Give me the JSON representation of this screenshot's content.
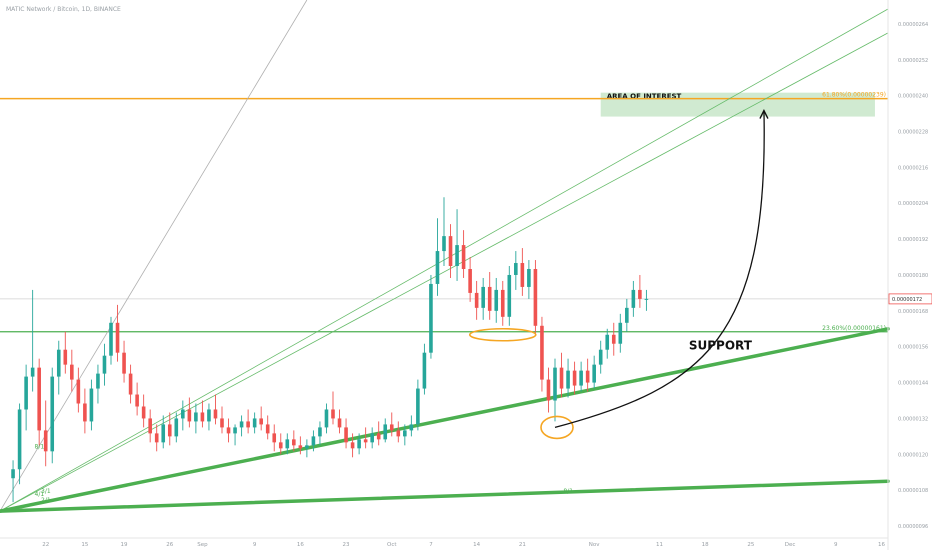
{
  "header": {
    "title": "MATIC Network / Bitcoin, 1D, BINANCE"
  },
  "colors": {
    "up": "#26a69a",
    "down": "#ef5350",
    "fib_line": "#f5a623",
    "support_line": "#4caf50",
    "zone_fill": "#c8e6c9",
    "fan_line": "#66bb6a",
    "highlight": "#f5a623",
    "arrow": "#111111",
    "current_price_bg": "#ef5350"
  },
  "annotations": {
    "area_of_interest": "AREA OF INTEREST",
    "support": "SUPPORT",
    "fib_upper_label": "61.80%(0.00000239)",
    "fib_lower_label": "23.60%(0.00000161)",
    "current_price": "0.00000172",
    "fan_labels": [
      "8/1",
      "4/1",
      "3/1",
      "2/1",
      "8/1"
    ]
  },
  "chart_data": {
    "type": "candlestick",
    "title": "MATIC Network / Bitcoin, 1D, BINANCE",
    "xlabel": "",
    "ylabel": "",
    "grid": false,
    "y_axis_side": "right",
    "ylim": [
      9.2e-07,
      2.72e-06
    ],
    "y_ticks": [
      9.6e-07,
      1.08e-06,
      1.2e-06,
      1.32e-06,
      1.44e-06,
      1.56e-06,
      1.68e-06,
      1.8e-06,
      1.92e-06,
      2.04e-06,
      2.16e-06,
      2.28e-06,
      2.4e-06,
      2.52e-06,
      2.64e-06
    ],
    "x_ticks": [
      {
        "label": "22",
        "day": 5
      },
      {
        "label": "15",
        "day": 11
      },
      {
        "label": "19",
        "day": 17
      },
      {
        "label": "26",
        "day": 24
      },
      {
        "label": "Sep",
        "day": 29
      },
      {
        "label": "9",
        "day": 37
      },
      {
        "label": "16",
        "day": 44
      },
      {
        "label": "23",
        "day": 51
      },
      {
        "label": "Oct",
        "day": 58
      },
      {
        "label": "7",
        "day": 64
      },
      {
        "label": "14",
        "day": 71
      },
      {
        "label": "21",
        "day": 78
      },
      {
        "label": "Nov",
        "day": 89
      },
      {
        "label": "11",
        "day": 99
      },
      {
        "label": "18",
        "day": 106
      },
      {
        "label": "25",
        "day": 113
      },
      {
        "label": "Dec",
        "day": 119
      },
      {
        "label": "9",
        "day": 126
      },
      {
        "label": "16",
        "day": 133
      }
    ],
    "fib_levels": [
      {
        "label": "61.80%(0.00000239)",
        "value": 2.39e-06
      },
      {
        "label": "23.60%(0.00000161)",
        "value": 1.61e-06
      }
    ],
    "current_price": 1.72e-06,
    "support_trendlines": [
      {
        "from": {
          "day": -2,
          "price": 1.01e-06
        },
        "to": {
          "day": 134,
          "price": 1.62e-06
        },
        "width": "thick"
      },
      {
        "from": {
          "day": -2,
          "price": 1.01e-06
        },
        "to": {
          "day": 134,
          "price": 1.11e-06
        },
        "width": "thick"
      }
    ],
    "fan_lines": [
      {
        "label": "8/1",
        "from": {
          "day": -2,
          "price": 1.01e-06
        },
        "to": {
          "day": 45,
          "price": 2.72e-06
        },
        "color": "gray"
      },
      {
        "label": "3/1",
        "from": {
          "day": -2,
          "price": 1.01e-06
        },
        "to": {
          "day": 134,
          "price": 2.69e-06
        },
        "color": "green"
      },
      {
        "label": "2/1",
        "from": {
          "day": -2,
          "price": 1.01e-06
        },
        "to": {
          "day": 134,
          "price": 2.61e-06
        },
        "color": "green"
      }
    ],
    "area_of_interest": {
      "day_start": 90,
      "day_end": 132,
      "price_low": 2.33e-06,
      "price_high": 2.41e-06
    },
    "highlights": [
      {
        "day": 75,
        "price": 1.6e-06,
        "shape": "ellipse"
      },
      {
        "day": 83,
        "price": 1.29e-06,
        "shape": "ellipse"
      }
    ],
    "projection_arrow": {
      "from": {
        "day": 83,
        "price": 1.29e-06
      },
      "to": {
        "day": 115,
        "price": 2.35e-06
      }
    },
    "candles": [
      {
        "day": 0,
        "open": 1.12e-06,
        "high": 1.18e-06,
        "low": 1.04e-06,
        "close": 1.15e-06
      },
      {
        "day": 1,
        "open": 1.15e-06,
        "high": 1.37e-06,
        "low": 1.1e-06,
        "close": 1.35e-06
      },
      {
        "day": 2,
        "open": 1.35e-06,
        "high": 1.5e-06,
        "low": 1.28e-06,
        "close": 1.46e-06
      },
      {
        "day": 3,
        "open": 1.46e-06,
        "high": 1.75e-06,
        "low": 1.41e-06,
        "close": 1.49e-06
      },
      {
        "day": 4,
        "open": 1.49e-06,
        "high": 1.52e-06,
        "low": 1.23e-06,
        "close": 1.28e-06
      },
      {
        "day": 5,
        "open": 1.28e-06,
        "high": 1.38e-06,
        "low": 1.16e-06,
        "close": 1.21e-06
      },
      {
        "day": 6,
        "open": 1.21e-06,
        "high": 1.49e-06,
        "low": 1.17e-06,
        "close": 1.46e-06
      },
      {
        "day": 7,
        "open": 1.46e-06,
        "high": 1.58e-06,
        "low": 1.4e-06,
        "close": 1.55e-06
      },
      {
        "day": 8,
        "open": 1.55e-06,
        "high": 1.61e-06,
        "low": 1.47e-06,
        "close": 1.5e-06
      },
      {
        "day": 9,
        "open": 1.5e-06,
        "high": 1.55e-06,
        "low": 1.41e-06,
        "close": 1.45e-06
      },
      {
        "day": 10,
        "open": 1.45e-06,
        "high": 1.49e-06,
        "low": 1.34e-06,
        "close": 1.37e-06
      },
      {
        "day": 11,
        "open": 1.37e-06,
        "high": 1.42e-06,
        "low": 1.27e-06,
        "close": 1.31e-06
      },
      {
        "day": 12,
        "open": 1.31e-06,
        "high": 1.45e-06,
        "low": 1.28e-06,
        "close": 1.42e-06
      },
      {
        "day": 13,
        "open": 1.42e-06,
        "high": 1.5e-06,
        "low": 1.37e-06,
        "close": 1.47e-06
      },
      {
        "day": 14,
        "open": 1.47e-06,
        "high": 1.57e-06,
        "low": 1.43e-06,
        "close": 1.53e-06
      },
      {
        "day": 15,
        "open": 1.53e-06,
        "high": 1.66e-06,
        "low": 1.5e-06,
        "close": 1.64e-06
      },
      {
        "day": 16,
        "open": 1.64e-06,
        "high": 1.7e-06,
        "low": 1.51e-06,
        "close": 1.54e-06
      },
      {
        "day": 17,
        "open": 1.54e-06,
        "high": 1.58e-06,
        "low": 1.44e-06,
        "close": 1.47e-06
      },
      {
        "day": 18,
        "open": 1.47e-06,
        "high": 1.5e-06,
        "low": 1.37e-06,
        "close": 1.4e-06
      },
      {
        "day": 19,
        "open": 1.4e-06,
        "high": 1.44e-06,
        "low": 1.33e-06,
        "close": 1.36e-06
      },
      {
        "day": 20,
        "open": 1.36e-06,
        "high": 1.4e-06,
        "low": 1.29e-06,
        "close": 1.32e-06
      },
      {
        "day": 21,
        "open": 1.32e-06,
        "high": 1.35e-06,
        "low": 1.24e-06,
        "close": 1.27e-06
      },
      {
        "day": 22,
        "open": 1.27e-06,
        "high": 1.3e-06,
        "low": 1.21e-06,
        "close": 1.24e-06
      },
      {
        "day": 23,
        "open": 1.24e-06,
        "high": 1.33e-06,
        "low": 1.22e-06,
        "close": 1.3e-06
      },
      {
        "day": 24,
        "open": 1.3e-06,
        "high": 1.34e-06,
        "low": 1.23e-06,
        "close": 1.26e-06
      },
      {
        "day": 25,
        "open": 1.26e-06,
        "high": 1.34e-06,
        "low": 1.24e-06,
        "close": 1.32e-06
      },
      {
        "day": 26,
        "open": 1.32e-06,
        "high": 1.38e-06,
        "low": 1.28e-06,
        "close": 1.35e-06
      },
      {
        "day": 27,
        "open": 1.35e-06,
        "high": 1.39e-06,
        "low": 1.29e-06,
        "close": 1.31e-06
      },
      {
        "day": 28,
        "open": 1.31e-06,
        "high": 1.37e-06,
        "low": 1.27e-06,
        "close": 1.34e-06
      },
      {
        "day": 29,
        "open": 1.34e-06,
        "high": 1.38e-06,
        "low": 1.29e-06,
        "close": 1.31e-06
      },
      {
        "day": 30,
        "open": 1.31e-06,
        "high": 1.37e-06,
        "low": 1.28e-06,
        "close": 1.35e-06
      },
      {
        "day": 31,
        "open": 1.35e-06,
        "high": 1.4e-06,
        "low": 1.3e-06,
        "close": 1.32e-06
      },
      {
        "day": 32,
        "open": 1.32e-06,
        "high": 1.36e-06,
        "low": 1.27e-06,
        "close": 1.29e-06
      },
      {
        "day": 33,
        "open": 1.29e-06,
        "high": 1.32e-06,
        "low": 1.24e-06,
        "close": 1.27e-06
      },
      {
        "day": 34,
        "open": 1.27e-06,
        "high": 1.3e-06,
        "low": 1.23e-06,
        "close": 1.29e-06
      },
      {
        "day": 35,
        "open": 1.29e-06,
        "high": 1.33e-06,
        "low": 1.26e-06,
        "close": 1.31e-06
      },
      {
        "day": 36,
        "open": 1.31e-06,
        "high": 1.35e-06,
        "low": 1.27e-06,
        "close": 1.29e-06
      },
      {
        "day": 37,
        "open": 1.29e-06,
        "high": 1.34e-06,
        "low": 1.27e-06,
        "close": 1.32e-06
      },
      {
        "day": 38,
        "open": 1.32e-06,
        "high": 1.36e-06,
        "low": 1.28e-06,
        "close": 1.3e-06
      },
      {
        "day": 39,
        "open": 1.3e-06,
        "high": 1.33e-06,
        "low": 1.25e-06,
        "close": 1.27e-06
      },
      {
        "day": 40,
        "open": 1.27e-06,
        "high": 1.3e-06,
        "low": 1.21e-06,
        "close": 1.24e-06
      },
      {
        "day": 41,
        "open": 1.24e-06,
        "high": 1.27e-06,
        "low": 1.2e-06,
        "close": 1.22e-06
      },
      {
        "day": 42,
        "open": 1.22e-06,
        "high": 1.27e-06,
        "low": 1.2e-06,
        "close": 1.25e-06
      },
      {
        "day": 43,
        "open": 1.25e-06,
        "high": 1.28e-06,
        "low": 1.21e-06,
        "close": 1.23e-06
      },
      {
        "day": 44,
        "open": 1.23e-06,
        "high": 1.26e-06,
        "low": 1.2e-06,
        "close": 1.22e-06
      },
      {
        "day": 45,
        "open": 1.22e-06,
        "high": 1.25e-06,
        "low": 1.19e-06,
        "close": 1.23e-06
      },
      {
        "day": 46,
        "open": 1.23e-06,
        "high": 1.28e-06,
        "low": 1.21e-06,
        "close": 1.26e-06
      },
      {
        "day": 47,
        "open": 1.26e-06,
        "high": 1.31e-06,
        "low": 1.23e-06,
        "close": 1.29e-06
      },
      {
        "day": 48,
        "open": 1.29e-06,
        "high": 1.37e-06,
        "low": 1.27e-06,
        "close": 1.35e-06
      },
      {
        "day": 49,
        "open": 1.35e-06,
        "high": 1.41e-06,
        "low": 1.3e-06,
        "close": 1.32e-06
      },
      {
        "day": 50,
        "open": 1.32e-06,
        "high": 1.35e-06,
        "low": 1.27e-06,
        "close": 1.29e-06
      },
      {
        "day": 51,
        "open": 1.29e-06,
        "high": 1.32e-06,
        "low": 1.22e-06,
        "close": 1.24e-06
      },
      {
        "day": 52,
        "open": 1.24e-06,
        "high": 1.27e-06,
        "low": 1.19e-06,
        "close": 1.22e-06
      },
      {
        "day": 53,
        "open": 1.22e-06,
        "high": 1.27e-06,
        "low": 1.2e-06,
        "close": 1.25e-06
      },
      {
        "day": 54,
        "open": 1.25e-06,
        "high": 1.29e-06,
        "low": 1.22e-06,
        "close": 1.24e-06
      },
      {
        "day": 55,
        "open": 1.24e-06,
        "high": 1.29e-06,
        "low": 1.22e-06,
        "close": 1.27e-06
      },
      {
        "day": 56,
        "open": 1.27e-06,
        "high": 1.31e-06,
        "low": 1.23e-06,
        "close": 1.25e-06
      },
      {
        "day": 57,
        "open": 1.25e-06,
        "high": 1.32e-06,
        "low": 1.24e-06,
        "close": 1.3e-06
      },
      {
        "day": 58,
        "open": 1.3e-06,
        "high": 1.34e-06,
        "low": 1.26e-06,
        "close": 1.28e-06
      },
      {
        "day": 59,
        "open": 1.28e-06,
        "high": 1.31e-06,
        "low": 1.24e-06,
        "close": 1.26e-06
      },
      {
        "day": 60,
        "open": 1.26e-06,
        "high": 1.3e-06,
        "low": 1.23e-06,
        "close": 1.28e-06
      },
      {
        "day": 61,
        "open": 1.28e-06,
        "high": 1.33e-06,
        "low": 1.26e-06,
        "close": 1.3e-06
      },
      {
        "day": 62,
        "open": 1.3e-06,
        "high": 1.45e-06,
        "low": 1.28e-06,
        "close": 1.42e-06
      },
      {
        "day": 63,
        "open": 1.42e-06,
        "high": 1.57e-06,
        "low": 1.4e-06,
        "close": 1.54e-06
      },
      {
        "day": 64,
        "open": 1.54e-06,
        "high": 1.8e-06,
        "low": 1.52e-06,
        "close": 1.77e-06
      },
      {
        "day": 65,
        "open": 1.77e-06,
        "high": 1.99e-06,
        "low": 1.73e-06,
        "close": 1.88e-06
      },
      {
        "day": 66,
        "open": 1.88e-06,
        "high": 2.06e-06,
        "low": 1.83e-06,
        "close": 1.93e-06
      },
      {
        "day": 67,
        "open": 1.93e-06,
        "high": 1.97e-06,
        "low": 1.79e-06,
        "close": 1.83e-06
      },
      {
        "day": 68,
        "open": 1.83e-06,
        "high": 2.02e-06,
        "low": 1.78e-06,
        "close": 1.9e-06
      },
      {
        "day": 69,
        "open": 1.9e-06,
        "high": 1.95e-06,
        "low": 1.79e-06,
        "close": 1.82e-06
      },
      {
        "day": 70,
        "open": 1.82e-06,
        "high": 1.86e-06,
        "low": 1.71e-06,
        "close": 1.74e-06
      },
      {
        "day": 71,
        "open": 1.74e-06,
        "high": 1.78e-06,
        "low": 1.65e-06,
        "close": 1.69e-06
      },
      {
        "day": 72,
        "open": 1.69e-06,
        "high": 1.79e-06,
        "low": 1.65e-06,
        "close": 1.76e-06
      },
      {
        "day": 73,
        "open": 1.76e-06,
        "high": 1.81e-06,
        "low": 1.65e-06,
        "close": 1.68e-06
      },
      {
        "day": 74,
        "open": 1.68e-06,
        "high": 1.79e-06,
        "low": 1.64e-06,
        "close": 1.75e-06
      },
      {
        "day": 75,
        "open": 1.75e-06,
        "high": 1.78e-06,
        "low": 1.63e-06,
        "close": 1.66e-06
      },
      {
        "day": 76,
        "open": 1.66e-06,
        "high": 1.83e-06,
        "low": 1.63e-06,
        "close": 1.8e-06
      },
      {
        "day": 77,
        "open": 1.8e-06,
        "high": 1.88e-06,
        "low": 1.75e-06,
        "close": 1.84e-06
      },
      {
        "day": 78,
        "open": 1.84e-06,
        "high": 1.89e-06,
        "low": 1.73e-06,
        "close": 1.76e-06
      },
      {
        "day": 79,
        "open": 1.76e-06,
        "high": 1.85e-06,
        "low": 1.72e-06,
        "close": 1.82e-06
      },
      {
        "day": 80,
        "open": 1.82e-06,
        "high": 1.85e-06,
        "low": 1.6e-06,
        "close": 1.63e-06
      },
      {
        "day": 81,
        "open": 1.63e-06,
        "high": 1.66e-06,
        "low": 1.41e-06,
        "close": 1.45e-06
      },
      {
        "day": 82,
        "open": 1.45e-06,
        "high": 1.49e-06,
        "low": 1.34e-06,
        "close": 1.38e-06
      },
      {
        "day": 83,
        "open": 1.38e-06,
        "high": 1.52e-06,
        "low": 1.31e-06,
        "close": 1.49e-06
      },
      {
        "day": 84,
        "open": 1.49e-06,
        "high": 1.54e-06,
        "low": 1.39e-06,
        "close": 1.42e-06
      },
      {
        "day": 85,
        "open": 1.42e-06,
        "high": 1.52e-06,
        "low": 1.39e-06,
        "close": 1.48e-06
      },
      {
        "day": 86,
        "open": 1.48e-06,
        "high": 1.51e-06,
        "low": 1.4e-06,
        "close": 1.43e-06
      },
      {
        "day": 87,
        "open": 1.43e-06,
        "high": 1.51e-06,
        "low": 1.41e-06,
        "close": 1.48e-06
      },
      {
        "day": 88,
        "open": 1.48e-06,
        "high": 1.52e-06,
        "low": 1.41e-06,
        "close": 1.44e-06
      },
      {
        "day": 89,
        "open": 1.44e-06,
        "high": 1.53e-06,
        "low": 1.42e-06,
        "close": 1.5e-06
      },
      {
        "day": 90,
        "open": 1.5e-06,
        "high": 1.58e-06,
        "low": 1.47e-06,
        "close": 1.55e-06
      },
      {
        "day": 91,
        "open": 1.55e-06,
        "high": 1.62e-06,
        "low": 1.52e-06,
        "close": 1.6e-06
      },
      {
        "day": 92,
        "open": 1.6e-06,
        "high": 1.64e-06,
        "low": 1.53e-06,
        "close": 1.57e-06
      },
      {
        "day": 93,
        "open": 1.57e-06,
        "high": 1.67e-06,
        "low": 1.54e-06,
        "close": 1.64e-06
      },
      {
        "day": 94,
        "open": 1.64e-06,
        "high": 1.72e-06,
        "low": 1.61e-06,
        "close": 1.69e-06
      },
      {
        "day": 95,
        "open": 1.69e-06,
        "high": 1.78e-06,
        "low": 1.66e-06,
        "close": 1.75e-06
      },
      {
        "day": 96,
        "open": 1.75e-06,
        "high": 1.8e-06,
        "low": 1.69e-06,
        "close": 1.72e-06
      },
      {
        "day": 97,
        "open": 1.72e-06,
        "high": 1.75e-06,
        "low": 1.68e-06,
        "close": 1.72e-06
      }
    ]
  }
}
